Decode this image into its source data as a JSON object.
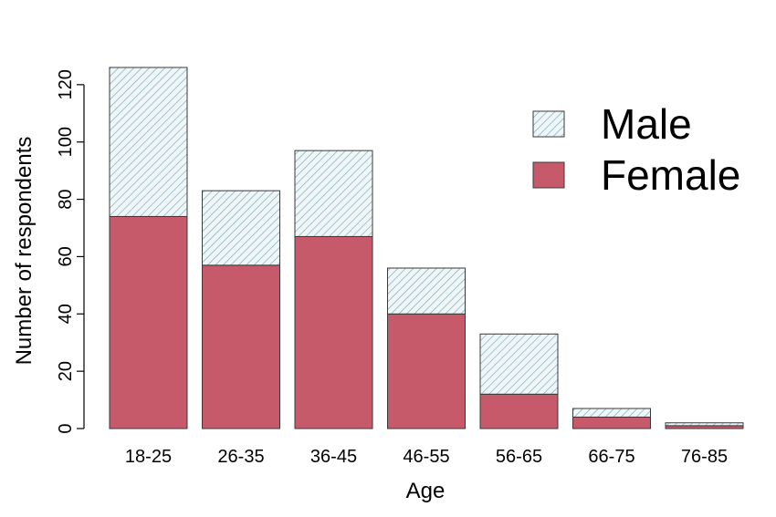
{
  "chart_data": {
    "type": "bar",
    "stacked": true,
    "xlabel": "Age",
    "ylabel": "Number of respondents",
    "categories": [
      "18-25",
      "26-35",
      "36-45",
      "46-55",
      "56-65",
      "66-75",
      "76-85"
    ],
    "series": [
      {
        "name": "Female",
        "values": [
          74,
          57,
          67,
          40,
          12,
          4,
          1
        ],
        "color": "#c65a6a",
        "fill": "solid"
      },
      {
        "name": "Male",
        "values": [
          52,
          26,
          30,
          16,
          21,
          3,
          1
        ],
        "color": "#7fa6b4",
        "fill": "hatched"
      }
    ],
    "yticks": [
      0,
      20,
      40,
      60,
      80,
      100,
      120
    ],
    "ylim": [
      0,
      126
    ],
    "grid": false,
    "legend_position": "top-right",
    "legend_order": [
      "Male",
      "Female"
    ]
  }
}
